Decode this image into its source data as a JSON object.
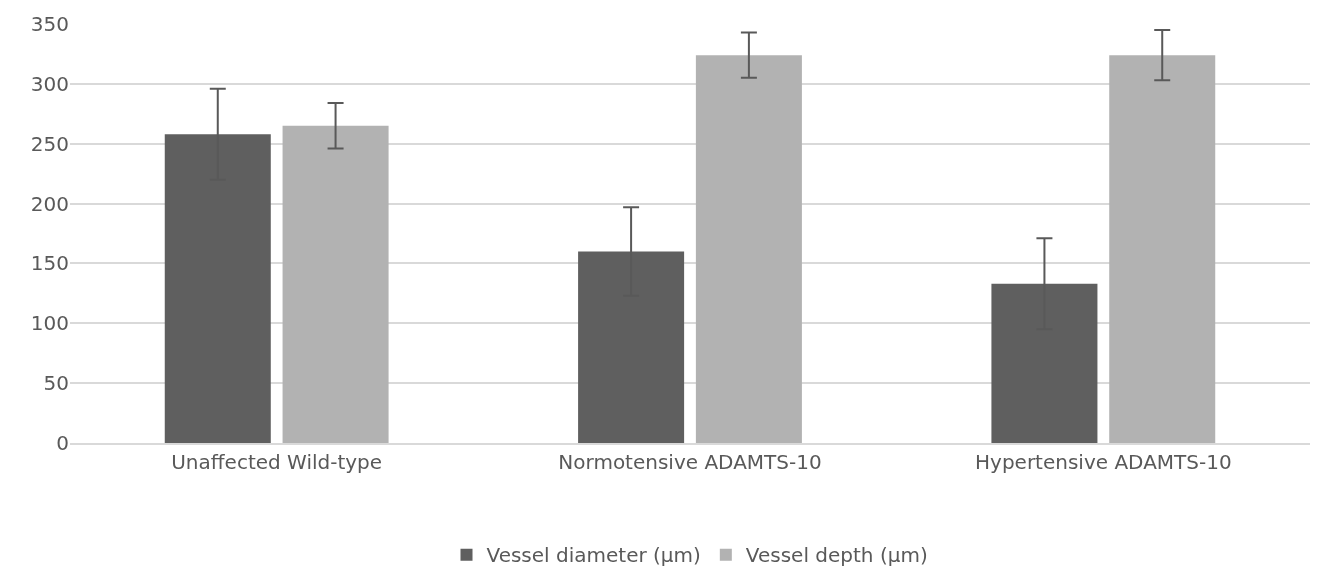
{
  "chart_data": {
    "type": "bar",
    "categories": [
      "Unaffected Wild-type",
      "Normotensive ADAMTS-10",
      "Hypertensive ADAMTS-10"
    ],
    "series": [
      {
        "name": "Vessel diameter (µm)",
        "color": "#5f5f5f",
        "values": [
          258,
          160,
          133
        ],
        "errors": [
          38,
          37,
          38
        ]
      },
      {
        "name": "Vessel depth (µm)",
        "color": "#b2b2b2",
        "values": [
          265,
          324,
          324
        ],
        "errors": [
          19,
          19,
          21
        ]
      }
    ],
    "ylim": [
      0,
      350
    ],
    "yticks": [
      0,
      50,
      100,
      150,
      200,
      250,
      300,
      350
    ],
    "grid": "y",
    "legend": "bottom"
  }
}
